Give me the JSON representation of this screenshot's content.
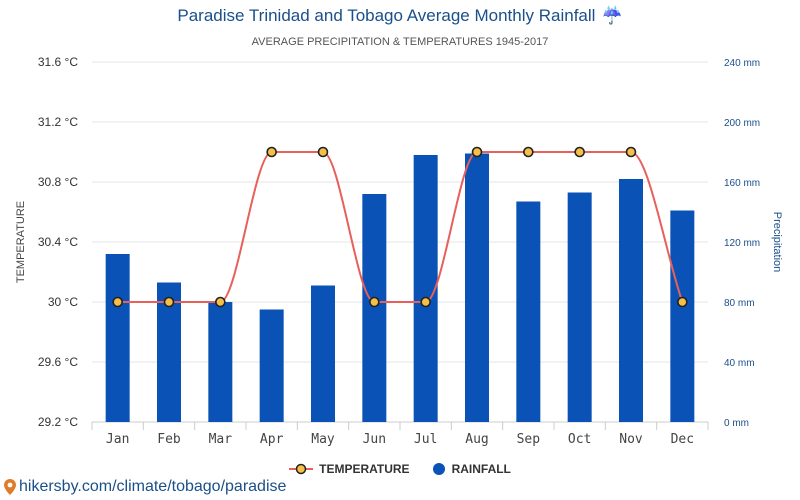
{
  "chart_data": {
    "type": "bar",
    "title": "Paradise Trinidad and Tobago Average Monthly Rainfall",
    "title_icon": "umbrella-rain-icon",
    "subtitle": "AVERAGE PRECIPITATION & TEMPERATURES 1945-2017",
    "categories": [
      "Jan",
      "Feb",
      "Mar",
      "Apr",
      "May",
      "Jun",
      "Jul",
      "Aug",
      "Sep",
      "Oct",
      "Nov",
      "Dec"
    ],
    "series": [
      {
        "name": "TEMPERATURE",
        "type": "line",
        "axis": "left",
        "unit": "°C",
        "color": "#e8605a",
        "marker_fill": "#f5c04a",
        "values": [
          30,
          30,
          30,
          31,
          31,
          30,
          30,
          31,
          31,
          31,
          31,
          30
        ]
      },
      {
        "name": "RAINFALL",
        "type": "bar",
        "axis": "right",
        "unit": "mm",
        "color": "#0a52b5",
        "values": [
          112,
          93,
          80,
          75,
          91,
          152,
          178,
          179,
          147,
          153,
          162,
          141
        ]
      }
    ],
    "left_axis": {
      "label": "TEMPERATURE",
      "ylim": [
        29.2,
        31.6
      ],
      "ticks": [
        "29.2 °C",
        "29.6 °C",
        "30 °C",
        "30.4 °C",
        "30.8 °C",
        "31.2 °C",
        "31.6 °C"
      ]
    },
    "right_axis": {
      "label": "Precipitation",
      "ylim": [
        0,
        240
      ],
      "ticks": [
        "0 mm",
        "40 mm",
        "80 mm",
        "120 mm",
        "160 mm",
        "200 mm",
        "240 mm"
      ],
      "color": "#1a4f8a"
    },
    "grid": true,
    "legend_position": "bottom-center"
  },
  "footer": {
    "url": "hikersby.com/climate/tobago/paradise",
    "icon": "location-pin-icon",
    "icon_color": "#e07b2a"
  }
}
